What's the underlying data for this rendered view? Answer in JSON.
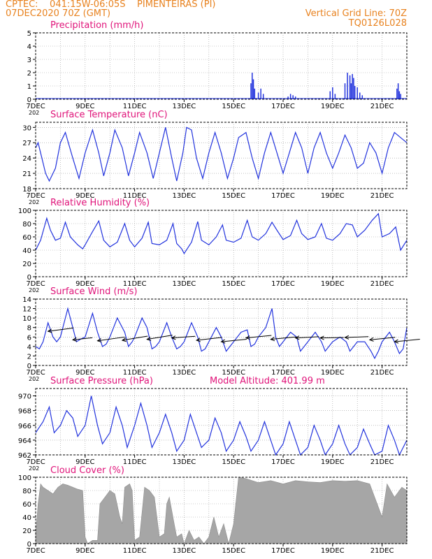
{
  "header": {
    "left_line1": "CPTEC:    041:15W-06:05S    PIMENTEIRAS (PI)",
    "left_line2": "07DEC2020 70Z (GMT)",
    "right_line1": "Vertical Grid Line: 70Z",
    "right_line2": "TQ0126L028"
  },
  "colors": {
    "header": "#e8821f",
    "title": "#e0147a",
    "series": "#2233dd",
    "cloud": "#a6a6a6"
  },
  "x_axis": {
    "start_day": 7,
    "end_day": 22,
    "tick_labels": [
      "7DEC",
      "9DEC",
      "11DEC",
      "13DEC",
      "15DEC",
      "17DEC",
      "19DEC",
      "21DEC"
    ],
    "cut_label": "202"
  },
  "chart_data": [
    {
      "id": "precip",
      "type": "bar",
      "title": "Precipitation (mm/h)",
      "ylim": [
        0,
        5
      ],
      "yticks": [
        "0",
        "1",
        "2",
        "3",
        "4",
        "5"
      ],
      "grid": true,
      "x": [
        15.7,
        15.75,
        15.8,
        15.85,
        16.0,
        16.1,
        16.2,
        17.2,
        17.3,
        17.4,
        17.5,
        18.9,
        19.0,
        19.1,
        19.5,
        19.6,
        19.7,
        19.75,
        19.8,
        19.85,
        19.9,
        20.0,
        20.1,
        20.2,
        21.6,
        21.65,
        21.7,
        21.75
      ],
      "values": [
        1.2,
        2.0,
        1.5,
        0.8,
        0.5,
        0.8,
        0.4,
        0.2,
        0.4,
        0.3,
        0.2,
        0.6,
        0.9,
        0.4,
        1.2,
        2.0,
        1.8,
        1.2,
        1.9,
        1.6,
        1.0,
        0.9,
        0.5,
        0.3,
        0.8,
        1.2,
        0.6,
        0.4
      ]
    },
    {
      "id": "temp",
      "type": "line",
      "title": "Surface Temperature (nC)",
      "ylim": [
        18,
        31
      ],
      "yticks": [
        "18",
        "21",
        "24",
        "27",
        "30"
      ],
      "grid": true,
      "x": [
        7.0,
        7.1,
        7.25,
        7.4,
        7.55,
        7.8,
        8.0,
        8.2,
        8.5,
        8.75,
        9.0,
        9.3,
        9.55,
        9.75,
        10.0,
        10.2,
        10.5,
        10.75,
        11.0,
        11.2,
        11.5,
        11.75,
        12.0,
        12.25,
        12.5,
        12.7,
        12.95,
        13.1,
        13.3,
        13.5,
        13.75,
        14.0,
        14.25,
        14.5,
        14.75,
        15.0,
        15.2,
        15.5,
        15.75,
        16.0,
        16.25,
        16.5,
        16.75,
        17.0,
        17.25,
        17.5,
        17.75,
        18.0,
        18.25,
        18.5,
        18.75,
        19.0,
        19.25,
        19.5,
        19.75,
        20.0,
        20.25,
        20.5,
        20.75,
        21.0,
        21.25,
        21.5,
        21.75,
        22.0
      ],
      "values": [
        26,
        27,
        24,
        21,
        19.5,
        22,
        27,
        29,
        24,
        20,
        25,
        29.5,
        25,
        20.5,
        25,
        29.5,
        26,
        20.5,
        25,
        29,
        25,
        20,
        25,
        30,
        24,
        19.5,
        25,
        30,
        29.5,
        24,
        20,
        25,
        29,
        25,
        20,
        24,
        28,
        29,
        24,
        20,
        25,
        29,
        25,
        21,
        25,
        29,
        26,
        21,
        26,
        29,
        25,
        22,
        25,
        28.5,
        26,
        22,
        23,
        27,
        25,
        21,
        26,
        29,
        28,
        27
      ]
    },
    {
      "id": "rh",
      "type": "line",
      "title": "Relative Humidity (%)",
      "ylim": [
        0,
        100
      ],
      "yticks": [
        "0",
        "20",
        "40",
        "60",
        "80",
        "100"
      ],
      "grid": true,
      "x": [
        7.0,
        7.2,
        7.45,
        7.6,
        7.8,
        8.0,
        8.2,
        8.4,
        8.7,
        8.9,
        9.0,
        9.3,
        9.55,
        9.75,
        10.0,
        10.3,
        10.6,
        10.8,
        11.0,
        11.3,
        11.55,
        11.7,
        12.0,
        12.3,
        12.55,
        12.7,
        12.9,
        13.0,
        13.3,
        13.55,
        13.7,
        14.0,
        14.3,
        14.55,
        14.7,
        15.0,
        15.3,
        15.55,
        15.75,
        16.0,
        16.3,
        16.55,
        16.75,
        17.0,
        17.3,
        17.55,
        17.75,
        18.0,
        18.3,
        18.55,
        18.75,
        19.0,
        19.3,
        19.55,
        19.8,
        20.0,
        20.3,
        20.6,
        20.85,
        21.0,
        21.3,
        21.55,
        21.75,
        22.0
      ],
      "values": [
        40,
        55,
        88,
        70,
        55,
        58,
        82,
        60,
        48,
        42,
        48,
        68,
        84,
        55,
        45,
        52,
        80,
        55,
        45,
        58,
        82,
        50,
        48,
        55,
        80,
        50,
        42,
        35,
        52,
        83,
        55,
        48,
        60,
        78,
        55,
        52,
        58,
        85,
        60,
        55,
        65,
        82,
        70,
        56,
        62,
        85,
        65,
        56,
        60,
        80,
        58,
        55,
        65,
        80,
        78,
        60,
        70,
        85,
        95,
        60,
        65,
        75,
        40,
        55
      ]
    },
    {
      "id": "wind",
      "type": "line",
      "title": "Surface Wind (m/s)",
      "ylim": [
        0,
        14
      ],
      "yticks": [
        "0",
        "2",
        "4",
        "6",
        "8",
        "10",
        "12",
        "14"
      ],
      "grid": true,
      "x": [
        7.0,
        7.15,
        7.3,
        7.5,
        7.7,
        7.85,
        8.0,
        8.3,
        8.5,
        8.65,
        8.8,
        9.0,
        9.3,
        9.5,
        9.7,
        9.85,
        10.0,
        10.3,
        10.6,
        10.75,
        10.9,
        11.0,
        11.3,
        11.5,
        11.7,
        11.85,
        12.0,
        12.3,
        12.5,
        12.7,
        12.85,
        13.0,
        13.3,
        13.55,
        13.7,
        13.85,
        14.0,
        14.3,
        14.5,
        14.7,
        14.85,
        15.0,
        15.3,
        15.55,
        15.7,
        15.85,
        16.0,
        16.3,
        16.55,
        16.7,
        16.85,
        17.0,
        17.3,
        17.55,
        17.7,
        17.85,
        18.0,
        18.3,
        18.55,
        18.7,
        18.85,
        19.0,
        19.3,
        19.55,
        19.7,
        19.85,
        20.0,
        20.3,
        20.55,
        20.7,
        20.85,
        21.0,
        21.3,
        21.5,
        21.7,
        21.85,
        22.0
      ],
      "values": [
        4,
        3.5,
        5,
        9,
        6,
        5,
        6,
        12,
        8,
        5,
        5.5,
        6,
        11,
        7,
        4,
        4.5,
        6,
        10,
        7,
        4,
        5,
        6,
        10,
        8,
        3.5,
        4,
        5,
        9,
        6,
        3.5,
        4,
        5,
        9,
        6,
        3,
        3.5,
        5,
        8,
        6,
        3,
        4,
        5,
        7,
        7.5,
        4,
        4.5,
        6,
        8,
        12,
        6,
        4,
        5,
        7,
        6,
        3,
        4,
        5,
        7,
        5,
        3,
        4,
        5,
        6,
        5,
        3,
        4,
        5,
        5,
        3,
        1.5,
        3,
        5,
        7,
        5,
        2.5,
        3.5,
        8
      ],
      "arrows": [
        {
          "x": 7.5,
          "v": 7.2,
          "dx": 1.3,
          "dy": -0.8
        },
        {
          "x": 8.5,
          "v": 5.4,
          "dx": 1.0,
          "dy": -0.5
        },
        {
          "x": 9.5,
          "v": 5.2,
          "dx": 1.4,
          "dy": -0.9
        },
        {
          "x": 10.5,
          "v": 5.3,
          "dx": 1.3,
          "dy": -1.0
        },
        {
          "x": 11.5,
          "v": 5.5,
          "dx": 1.3,
          "dy": -1.0
        },
        {
          "x": 12.5,
          "v": 5.8,
          "dx": 1.2,
          "dy": -0.4
        },
        {
          "x": 13.5,
          "v": 5.3,
          "dx": 1.3,
          "dy": -0.7
        },
        {
          "x": 14.5,
          "v": 5.0,
          "dx": 1.3,
          "dy": -0.6
        },
        {
          "x": 15.5,
          "v": 5.8,
          "dx": 1.3,
          "dy": -0.6
        },
        {
          "x": 16.5,
          "v": 5.5,
          "dx": 1.3,
          "dy": -0.6
        },
        {
          "x": 17.5,
          "v": 5.8,
          "dx": 1.2,
          "dy": -0.3
        },
        {
          "x": 18.5,
          "v": 5.8,
          "dx": 1.2,
          "dy": -0.1
        },
        {
          "x": 19.5,
          "v": 5.9,
          "dx": 1.2,
          "dy": -0.2
        },
        {
          "x": 20.5,
          "v": 5.4,
          "dx": 1.3,
          "dy": -0.6
        },
        {
          "x": 21.5,
          "v": 5.0,
          "dx": 1.3,
          "dy": -0.6
        }
      ]
    },
    {
      "id": "pressure",
      "type": "line",
      "title": "Surface Pressure (hPa)",
      "note": "Model Altitude: 401.99 m",
      "ylim": [
        962,
        971
      ],
      "yticks": [
        "962",
        "964",
        "966",
        "968",
        "970"
      ],
      "grid": true,
      "x": [
        7.0,
        7.3,
        7.55,
        7.75,
        8.0,
        8.25,
        8.5,
        8.7,
        9.0,
        9.25,
        9.5,
        9.7,
        10.0,
        10.25,
        10.5,
        10.7,
        11.0,
        11.25,
        11.5,
        11.7,
        12.0,
        12.25,
        12.5,
        12.7,
        13.0,
        13.25,
        13.5,
        13.7,
        14.0,
        14.25,
        14.5,
        14.7,
        15.0,
        15.25,
        15.5,
        15.7,
        16.0,
        16.25,
        16.5,
        16.7,
        17.0,
        17.25,
        17.5,
        17.7,
        18.0,
        18.25,
        18.5,
        18.7,
        19.0,
        19.25,
        19.5,
        19.7,
        20.0,
        20.25,
        20.5,
        20.7,
        21.0,
        21.25,
        21.5,
        21.7,
        22.0
      ],
      "values": [
        965,
        966.5,
        968.5,
        965,
        966,
        968,
        967,
        964.5,
        966,
        970,
        966,
        963.5,
        965,
        968.5,
        966,
        963,
        966,
        969,
        966,
        963,
        965,
        967.5,
        965,
        962.5,
        964,
        967.5,
        965,
        963,
        964,
        967,
        965,
        962.5,
        964,
        966.5,
        964.5,
        962.5,
        964,
        966.5,
        964,
        962,
        963.5,
        966.5,
        964,
        962,
        963,
        966,
        964,
        962,
        963.5,
        966,
        963.5,
        962,
        963,
        965.5,
        963.5,
        962,
        962.5,
        966,
        964,
        962,
        964
      ]
    },
    {
      "id": "cloud",
      "type": "area",
      "title": "Cloud Cover (%)",
      "ylim": [
        0,
        100
      ],
      "yticks": [
        "0",
        "20",
        "40",
        "60",
        "80",
        "100"
      ],
      "grid": true,
      "x": [
        7.0,
        7.1,
        7.2,
        7.3,
        7.5,
        7.7,
        7.9,
        8.1,
        8.3,
        8.5,
        8.7,
        8.9,
        9.0,
        9.1,
        9.3,
        9.5,
        9.6,
        9.8,
        10.0,
        10.2,
        10.4,
        10.5,
        10.6,
        10.8,
        10.9,
        11.0,
        11.2,
        11.4,
        11.6,
        11.8,
        12.0,
        12.2,
        12.3,
        12.4,
        12.6,
        12.7,
        12.9,
        13.0,
        13.2,
        13.4,
        13.6,
        13.8,
        14.0,
        14.2,
        14.4,
        14.6,
        14.8,
        14.9,
        15.0,
        15.2,
        15.5,
        16.0,
        16.5,
        17.0,
        17.5,
        18.0,
        18.5,
        19.0,
        19.5,
        20.0,
        20.5,
        20.8,
        21.0,
        21.2,
        21.5,
        21.8,
        22.0
      ],
      "values": [
        15,
        60,
        90,
        85,
        80,
        75,
        85,
        90,
        88,
        85,
        82,
        80,
        10,
        0,
        5,
        5,
        60,
        70,
        80,
        75,
        40,
        30,
        85,
        90,
        80,
        5,
        10,
        85,
        80,
        70,
        10,
        15,
        60,
        70,
        30,
        10,
        15,
        0,
        20,
        5,
        10,
        0,
        10,
        40,
        10,
        30,
        0,
        15,
        30,
        100,
        98,
        92,
        95,
        90,
        95,
        93,
        92,
        95,
        94,
        95,
        90,
        60,
        40,
        90,
        70,
        85,
        80
      ]
    }
  ]
}
